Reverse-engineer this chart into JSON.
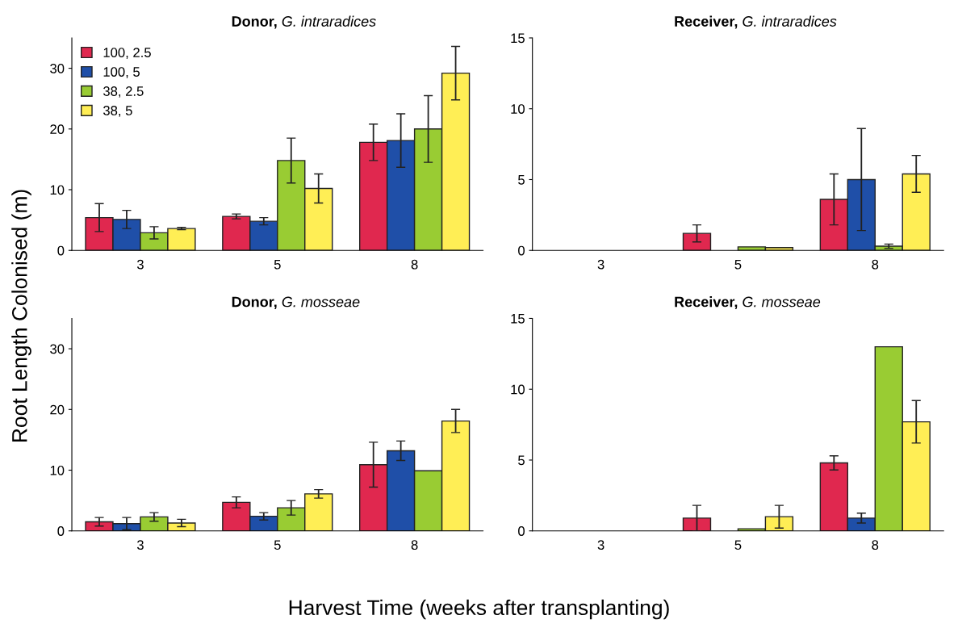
{
  "chart_data": [
    {
      "type": "bar",
      "title": "Donor, G. intraradices",
      "ylabel": "Root Length Colonised (m)",
      "categories": [
        "3",
        "5",
        "8"
      ],
      "ylim": [
        0,
        35
      ],
      "yticks": [
        0,
        10,
        20,
        30
      ],
      "legend": "top left",
      "grid": false,
      "series": [
        {
          "name": "100, 2.5",
          "color": "#e0284f",
          "values": [
            5.4,
            5.6,
            17.8
          ],
          "errors": [
            2.3,
            0.4,
            3.0
          ]
        },
        {
          "name": "100, 5",
          "color": "#1f4fa8",
          "values": [
            5.1,
            4.8,
            18.1
          ],
          "errors": [
            1.5,
            0.6,
            4.4
          ]
        },
        {
          "name": "38, 2.5",
          "color": "#99cc33",
          "values": [
            2.9,
            14.8,
            20.0
          ],
          "errors": [
            1.0,
            3.7,
            5.5
          ]
        },
        {
          "name": "38, 5",
          "color": "#ffee55",
          "values": [
            3.6,
            10.2,
            29.2
          ],
          "errors": [
            0.2,
            2.4,
            4.4
          ]
        }
      ]
    },
    {
      "type": "bar",
      "title": "Receiver, G. intraradices",
      "categories": [
        "3",
        "5",
        "8"
      ],
      "ylim": [
        0,
        15
      ],
      "yticks": [
        0,
        5,
        10,
        15
      ],
      "grid": false,
      "series": [
        {
          "color": "#e0284f",
          "values": [
            0.0,
            1.2,
            3.6
          ],
          "errors": [
            null,
            0.6,
            1.8
          ]
        },
        {
          "color": "#1f4fa8",
          "values": [
            0.0,
            0.0,
            5.0
          ],
          "errors": [
            null,
            null,
            3.6
          ]
        },
        {
          "color": "#99cc33",
          "values": [
            0.0,
            0.25,
            0.3
          ],
          "errors": [
            null,
            null,
            0.15
          ]
        },
        {
          "color": "#ffee55",
          "values": [
            0.0,
            0.2,
            5.4
          ],
          "errors": [
            null,
            null,
            1.3
          ]
        }
      ]
    },
    {
      "type": "bar",
      "title": "Donor, G. mosseae",
      "xlabel": "Harvest Time (weeks after transplanting)",
      "categories": [
        "3",
        "5",
        "8"
      ],
      "ylim": [
        0,
        35
      ],
      "yticks": [
        0,
        10,
        20,
        30
      ],
      "grid": false,
      "series": [
        {
          "color": "#e0284f",
          "values": [
            1.5,
            4.7,
            10.9
          ],
          "errors": [
            0.7,
            0.9,
            3.7
          ]
        },
        {
          "color": "#1f4fa8",
          "values": [
            1.2,
            2.4,
            13.2
          ],
          "errors": [
            1.0,
            0.6,
            1.6
          ]
        },
        {
          "color": "#99cc33",
          "values": [
            2.3,
            3.8,
            9.9
          ],
          "errors": [
            0.7,
            1.2,
            null
          ]
        },
        {
          "color": "#ffee55",
          "values": [
            1.3,
            6.1,
            18.1
          ],
          "errors": [
            0.6,
            0.7,
            1.9
          ]
        }
      ]
    },
    {
      "type": "bar",
      "title": "Receiver, G. mosseae",
      "categories": [
        "3",
        "5",
        "8"
      ],
      "ylim": [
        0,
        15
      ],
      "yticks": [
        0,
        5,
        10,
        15
      ],
      "grid": false,
      "series": [
        {
          "color": "#e0284f",
          "values": [
            0.0,
            0.9,
            4.8
          ],
          "errors": [
            null,
            0.9,
            0.5
          ]
        },
        {
          "color": "#1f4fa8",
          "values": [
            0.0,
            0.0,
            0.9
          ],
          "errors": [
            null,
            null,
            0.35
          ]
        },
        {
          "color": "#99cc33",
          "values": [
            0.0,
            0.15,
            13.0
          ],
          "errors": [
            null,
            null,
            null
          ]
        },
        {
          "color": "#ffee55",
          "values": [
            0.0,
            1.0,
            7.7
          ],
          "errors": [
            null,
            0.8,
            1.5
          ]
        }
      ]
    }
  ]
}
